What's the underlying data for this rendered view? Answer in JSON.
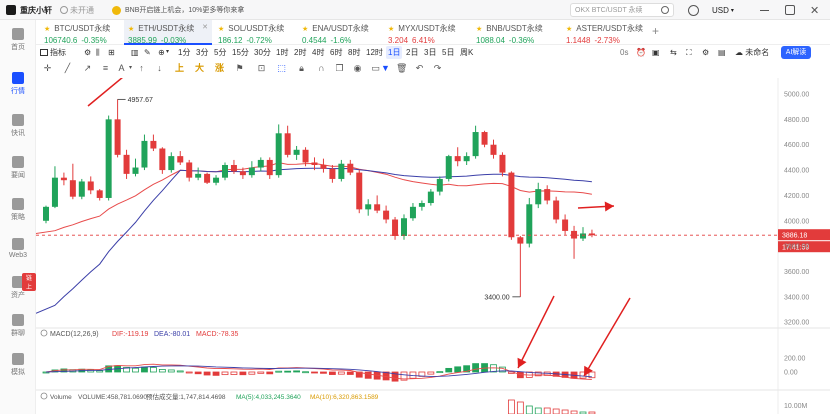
{
  "topbar": {
    "app_name": "重庆小轩",
    "status": "未开通",
    "ad_text": "BNB开启链上机会，10%更多等你来拿",
    "search_placeholder": "OKX BTC/USDT 永续",
    "currency": "USD"
  },
  "sidebar": {
    "items": [
      {
        "label": "首页",
        "icon": "home-icon"
      },
      {
        "label": "行情",
        "icon": "candlestick-icon",
        "active": true
      },
      {
        "label": "快讯",
        "icon": "news-icon"
      },
      {
        "label": "要闻",
        "icon": "headline-icon"
      },
      {
        "label": "策略",
        "icon": "strategy-icon"
      },
      {
        "label": "Web3",
        "icon": "web3-icon"
      },
      {
        "label": "资产",
        "icon": "asset-icon",
        "badge": "链上"
      },
      {
        "label": "群聊",
        "icon": "chat-icon"
      },
      {
        "label": "模拟",
        "icon": "simulate-icon"
      }
    ]
  },
  "tickers": [
    {
      "name": "BTC/USDT永续",
      "price": "106740.6",
      "change": "-0.35%",
      "dir": "up"
    },
    {
      "name": "ETH/USDT永续",
      "price": "3885.99",
      "change": "-0.03%",
      "dir": "up",
      "active": true
    },
    {
      "name": "SOL/USDT永续",
      "price": "186.12",
      "change": "-0.72%",
      "dir": "up"
    },
    {
      "name": "ENA/USDT永续",
      "price": "0.4544",
      "change": "-1.6%",
      "dir": "up"
    },
    {
      "name": "MYX/USDT永续",
      "price": "3.204",
      "change": "6.41%",
      "dir": "down"
    },
    {
      "name": "BNB/USDT永续",
      "price": "1088.04",
      "change": "-0.36%",
      "dir": "up"
    },
    {
      "name": "ASTER/USDT永续",
      "price": "1.1448",
      "change": "-2.73%",
      "dir": "down"
    }
  ],
  "toolbar": {
    "indicator_label": "指标",
    "intervals": [
      "1分",
      "3分",
      "5分",
      "15分",
      "30分",
      "1时",
      "2时",
      "4时",
      "6时",
      "8时",
      "12时",
      "1日",
      "2日",
      "3日",
      "5日",
      "周K"
    ],
    "active_interval": "1日",
    "countdown": "0s",
    "template_label": "未命名",
    "ai_label": "AI解读"
  },
  "drawing_tools": [
    "cursor-icon",
    "trendline-icon",
    "ray-icon",
    "parallel-channel-icon",
    "text-icon"
  ],
  "drawing_text": {
    "up": "上",
    "big": "大",
    "char": "涨"
  },
  "chart_data": {
    "type": "candlestick",
    "price_axis": [
      "5000.00",
      "4800.00",
      "4600.00",
      "4400.00",
      "4200.00",
      "4000.00",
      "3800.00",
      "3600.00",
      "3400.00",
      "3200.00"
    ],
    "ylim": [
      3170,
      5000
    ],
    "current_price": "3886.18",
    "countdown": "17:41:59",
    "annotations": {
      "high": "4957.67",
      "low": "3400.00"
    },
    "candles": [
      [
        4000,
        4120,
        3980,
        4110
      ],
      [
        4110,
        4430,
        4100,
        4340
      ],
      [
        4340,
        4380,
        4280,
        4320
      ],
      [
        4320,
        4450,
        4170,
        4190
      ],
      [
        4190,
        4330,
        4170,
        4310
      ],
      [
        4310,
        4350,
        4210,
        4240
      ],
      [
        4240,
        4250,
        4160,
        4180
      ],
      [
        4180,
        4830,
        4160,
        4800
      ],
      [
        4800,
        4957.67,
        4500,
        4520
      ],
      [
        4520,
        4560,
        4330,
        4370
      ],
      [
        4370,
        4490,
        4350,
        4420
      ],
      [
        4420,
        4680,
        4400,
        4630
      ],
      [
        4630,
        4680,
        4550,
        4570
      ],
      [
        4570,
        4580,
        4370,
        4400
      ],
      [
        4400,
        4540,
        4380,
        4510
      ],
      [
        4510,
        4550,
        4440,
        4460
      ],
      [
        4460,
        4480,
        4310,
        4340
      ],
      [
        4340,
        4420,
        4320,
        4370
      ],
      [
        4370,
        4380,
        4290,
        4300
      ],
      [
        4300,
        4360,
        4280,
        4340
      ],
      [
        4340,
        4460,
        4320,
        4440
      ],
      [
        4440,
        4480,
        4370,
        4390
      ],
      [
        4390,
        4420,
        4330,
        4360
      ],
      [
        4360,
        4470,
        4340,
        4420
      ],
      [
        4420,
        4500,
        4390,
        4480
      ],
      [
        4480,
        4500,
        4330,
        4360
      ],
      [
        4360,
        4760,
        4340,
        4690
      ],
      [
        4690,
        4750,
        4500,
        4520
      ],
      [
        4520,
        4590,
        4480,
        4560
      ],
      [
        4560,
        4580,
        4430,
        4460
      ],
      [
        4460,
        4500,
        4400,
        4440
      ],
      [
        4440,
        4490,
        4380,
        4410
      ],
      [
        4410,
        4440,
        4300,
        4330
      ],
      [
        4330,
        4480,
        4310,
        4450
      ],
      [
        4450,
        4480,
        4360,
        4380
      ],
      [
        4380,
        4400,
        4060,
        4090
      ],
      [
        4090,
        4170,
        4040,
        4130
      ],
      [
        4130,
        4200,
        4060,
        4080
      ],
      [
        4080,
        4120,
        3980,
        4010
      ],
      [
        4010,
        4030,
        3850,
        3880
      ],
      [
        3880,
        4050,
        3850,
        4020
      ],
      [
        4020,
        4140,
        4000,
        4110
      ],
      [
        4110,
        4160,
        4080,
        4140
      ],
      [
        4140,
        4250,
        4120,
        4230
      ],
      [
        4230,
        4350,
        4200,
        4330
      ],
      [
        4330,
        4520,
        4310,
        4510
      ],
      [
        4510,
        4580,
        4430,
        4470
      ],
      [
        4470,
        4540,
        4440,
        4510
      ],
      [
        4510,
        4750,
        4490,
        4700
      ],
      [
        4700,
        4710,
        4580,
        4600
      ],
      [
        4600,
        4640,
        4490,
        4520
      ],
      [
        4520,
        4540,
        4350,
        4380
      ],
      [
        4380,
        4390,
        3850,
        3870
      ],
      [
        3870,
        3880,
        3400,
        3820
      ],
      [
        3820,
        4180,
        3790,
        4130
      ],
      [
        4130,
        4300,
        4100,
        4250
      ],
      [
        4250,
        4280,
        4130,
        4160
      ],
      [
        4160,
        4190,
        3980,
        4010
      ],
      [
        4010,
        4050,
        3890,
        3920
      ],
      [
        3920,
        3960,
        3700,
        3860
      ],
      [
        3860,
        3950,
        3840,
        3900
      ],
      [
        3900,
        3930,
        3870,
        3886
      ]
    ],
    "ma_lines": [
      {
        "name": "MA short",
        "color": "#e84b4b"
      },
      {
        "name": "MA long",
        "color": "#3b3fa8"
      }
    ],
    "macd": {
      "label": "MACD(12,26,9)",
      "dif": "DIF:-119.19",
      "dea": "DEA:-80.01",
      "macd": "MACD:-78.35",
      "axis": [
        "200.00",
        "0.00"
      ]
    },
    "volume": {
      "label": "Volume",
      "vol": "VOLUME:458,781.0690",
      "pred": "预估成交量:1,747,814.4698",
      "ma5": "MA(5):4,033,245.3640",
      "ma10": "MA(10):6,320,863.1589",
      "axis": [
        "10.00M"
      ]
    }
  }
}
